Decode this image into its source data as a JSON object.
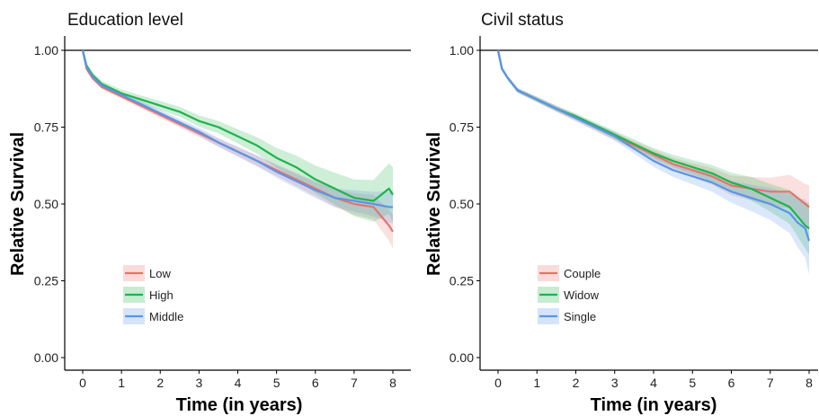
{
  "chart_data": [
    {
      "type": "line",
      "title": "Education level",
      "xlabel": "Time (in years)",
      "ylabel": "Relative Survival",
      "xlim": [
        0,
        8
      ],
      "ylim": [
        0,
        1
      ],
      "xticks": [
        "0",
        "1",
        "2",
        "3",
        "4",
        "5",
        "6",
        "7",
        "8"
      ],
      "yticks": [
        "0.00",
        "0.25",
        "0.50",
        "0.75",
        "1.00"
      ],
      "reference_line": 1.0,
      "grid": false,
      "legend_position": "bottom-left",
      "series": [
        {
          "name": "Low",
          "color": "#e8736c",
          "x": [
            0,
            0.1,
            0.25,
            0.5,
            1,
            1.5,
            2,
            2.5,
            3,
            3.5,
            4,
            4.5,
            5,
            5.5,
            6,
            6.5,
            7,
            7.5,
            7.7,
            7.9,
            8
          ],
          "y": [
            1.0,
            0.94,
            0.91,
            0.88,
            0.85,
            0.82,
            0.79,
            0.76,
            0.73,
            0.7,
            0.67,
            0.64,
            0.61,
            0.58,
            0.55,
            0.52,
            0.5,
            0.49,
            0.46,
            0.43,
            0.41
          ],
          "ci_width": [
            0,
            0.006,
            0.006,
            0.007,
            0.008,
            0.009,
            0.01,
            0.011,
            0.012,
            0.013,
            0.015,
            0.017,
            0.019,
            0.022,
            0.025,
            0.03,
            0.035,
            0.04,
            0.045,
            0.05,
            0.055
          ]
        },
        {
          "name": "High",
          "color": "#1fb34b",
          "x": [
            0,
            0.1,
            0.25,
            0.5,
            1,
            1.5,
            2,
            2.5,
            3,
            3.5,
            4,
            4.5,
            5,
            5.5,
            6,
            6.5,
            7,
            7.5,
            7.7,
            7.9,
            8
          ],
          "y": [
            1.0,
            0.95,
            0.92,
            0.89,
            0.86,
            0.84,
            0.82,
            0.8,
            0.77,
            0.75,
            0.72,
            0.69,
            0.65,
            0.62,
            0.58,
            0.55,
            0.52,
            0.51,
            0.53,
            0.55,
            0.53
          ],
          "ci_width": [
            0,
            0.008,
            0.009,
            0.01,
            0.012,
            0.013,
            0.015,
            0.016,
            0.018,
            0.02,
            0.023,
            0.027,
            0.032,
            0.038,
            0.045,
            0.052,
            0.06,
            0.068,
            0.075,
            0.082,
            0.09
          ]
        },
        {
          "name": "Middle",
          "color": "#5a95e8",
          "x": [
            0,
            0.1,
            0.25,
            0.5,
            1,
            1.5,
            2,
            2.5,
            3,
            3.5,
            4,
            4.5,
            5,
            5.5,
            6,
            6.5,
            7,
            7.5,
            7.7,
            7.9,
            8
          ],
          "y": [
            1.0,
            0.945,
            0.915,
            0.885,
            0.855,
            0.825,
            0.795,
            0.765,
            0.735,
            0.7,
            0.67,
            0.64,
            0.605,
            0.575,
            0.545,
            0.52,
            0.51,
            0.5,
            0.495,
            0.49,
            0.49
          ],
          "ci_width": [
            0,
            0.006,
            0.007,
            0.008,
            0.009,
            0.01,
            0.011,
            0.012,
            0.013,
            0.014,
            0.016,
            0.018,
            0.02,
            0.023,
            0.026,
            0.03,
            0.035,
            0.04,
            0.045,
            0.05,
            0.055
          ]
        }
      ]
    },
    {
      "type": "line",
      "title": "Civil status",
      "xlabel": "Time (in years)",
      "ylabel": "Relative Survival",
      "xlim": [
        0,
        8
      ],
      "ylim": [
        0,
        1
      ],
      "xticks": [
        "0",
        "1",
        "2",
        "3",
        "4",
        "5",
        "6",
        "7",
        "8"
      ],
      "yticks": [
        "0.00",
        "0.25",
        "0.50",
        "0.75",
        "1.00"
      ],
      "reference_line": 1.0,
      "grid": false,
      "legend_position": "bottom-left",
      "series": [
        {
          "name": "Couple",
          "color": "#e8736c",
          "x": [
            0,
            0.1,
            0.25,
            0.5,
            1,
            1.5,
            2,
            2.5,
            3,
            3.5,
            4,
            4.5,
            5,
            5.5,
            6,
            6.5,
            7,
            7.5,
            7.7,
            7.9,
            8
          ],
          "y": [
            1.0,
            0.94,
            0.91,
            0.87,
            0.84,
            0.81,
            0.78,
            0.75,
            0.72,
            0.69,
            0.66,
            0.63,
            0.61,
            0.59,
            0.56,
            0.55,
            0.54,
            0.54,
            0.52,
            0.5,
            0.49
          ],
          "ci_width": [
            0,
            0.005,
            0.006,
            0.007,
            0.008,
            0.009,
            0.01,
            0.011,
            0.013,
            0.015,
            0.017,
            0.02,
            0.023,
            0.027,
            0.032,
            0.038,
            0.045,
            0.055,
            0.06,
            0.065,
            0.07
          ]
        },
        {
          "name": "Widow",
          "color": "#1fb34b",
          "x": [
            0,
            0.1,
            0.25,
            0.5,
            1,
            1.5,
            2,
            2.5,
            3,
            3.5,
            4,
            4.5,
            5,
            5.5,
            6,
            6.5,
            7,
            7.5,
            7.7,
            7.9,
            8
          ],
          "y": [
            1.0,
            0.94,
            0.91,
            0.87,
            0.84,
            0.81,
            0.785,
            0.755,
            0.725,
            0.695,
            0.665,
            0.64,
            0.62,
            0.6,
            0.57,
            0.55,
            0.52,
            0.49,
            0.46,
            0.43,
            0.42
          ],
          "ci_width": [
            0,
            0.005,
            0.006,
            0.007,
            0.008,
            0.009,
            0.01,
            0.011,
            0.013,
            0.015,
            0.017,
            0.02,
            0.023,
            0.027,
            0.032,
            0.038,
            0.045,
            0.055,
            0.065,
            0.075,
            0.085
          ]
        },
        {
          "name": "Single",
          "color": "#5a95e8",
          "x": [
            0,
            0.1,
            0.25,
            0.5,
            1,
            1.5,
            2,
            2.5,
            3,
            3.5,
            4,
            4.5,
            5,
            5.5,
            6,
            6.5,
            7,
            7.5,
            7.7,
            7.9,
            8
          ],
          "y": [
            1.0,
            0.94,
            0.91,
            0.87,
            0.84,
            0.81,
            0.78,
            0.75,
            0.72,
            0.68,
            0.64,
            0.61,
            0.59,
            0.57,
            0.54,
            0.52,
            0.5,
            0.47,
            0.44,
            0.42,
            0.38
          ],
          "ci_width": [
            0,
            0.006,
            0.007,
            0.008,
            0.009,
            0.01,
            0.011,
            0.012,
            0.014,
            0.016,
            0.019,
            0.022,
            0.026,
            0.03,
            0.036,
            0.043,
            0.052,
            0.065,
            0.08,
            0.095,
            0.11
          ]
        }
      ]
    }
  ]
}
